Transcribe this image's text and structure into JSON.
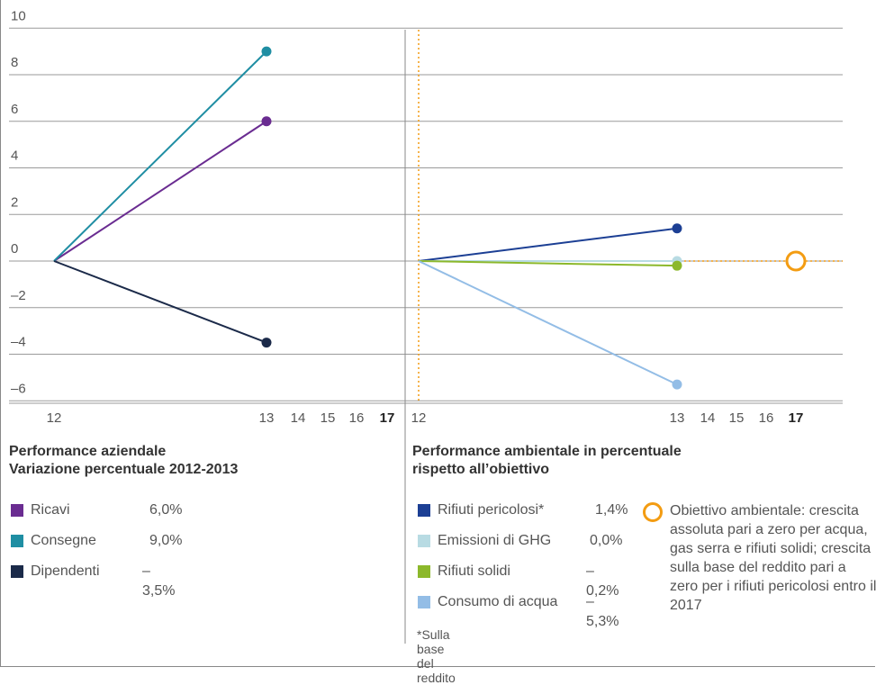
{
  "chart_data": [
    {
      "type": "line",
      "title": "Performance aziendale",
      "subtitle": "Variazione percentuale 2012-2013",
      "x_ticks": [
        "12",
        "13",
        "14",
        "15",
        "16",
        "17"
      ],
      "y_ticks": [
        "10",
        "8",
        "6",
        "4",
        "2",
        "0",
        "–2",
        "–4",
        "–6"
      ],
      "ylim": [
        -6,
        10
      ],
      "series": [
        {
          "name": "Ricavi",
          "color": "#6a2c91",
          "x": [
            12,
            13
          ],
          "y": [
            0,
            6.0
          ],
          "label": "6,0%"
        },
        {
          "name": "Consegne",
          "color": "#1f8ea3",
          "x": [
            12,
            13
          ],
          "y": [
            0,
            9.0
          ],
          "label": "9,0%"
        },
        {
          "name": "Dipendenti",
          "color": "#1b2a49",
          "x": [
            12,
            13
          ],
          "y": [
            0,
            -3.5
          ],
          "label": "–3,5%"
        }
      ]
    },
    {
      "type": "line",
      "title": "Performance ambientale in percentuale",
      "subtitle": "rispetto all’obiettivo",
      "x_ticks": [
        "12",
        "13",
        "14",
        "15",
        "16",
        "17"
      ],
      "ylim": [
        -6,
        10
      ],
      "series": [
        {
          "name": "Rifiuti pericolosi*",
          "color": "#1c3f94",
          "x": [
            12,
            13
          ],
          "y": [
            0,
            1.4
          ],
          "label": "1,4%"
        },
        {
          "name": "Emissioni di GHG",
          "color": "#b8dbe3",
          "x": [
            12,
            13
          ],
          "y": [
            0,
            0.0
          ],
          "label": "0,0%"
        },
        {
          "name": "Rifiuti solidi",
          "color": "#8cb82b",
          "x": [
            12,
            13
          ],
          "y": [
            0,
            -0.2
          ],
          "label": "–0,2%"
        },
        {
          "name": "Consumo di acqua",
          "color": "#93bde6",
          "x": [
            12,
            13
          ],
          "y": [
            0,
            -5.3
          ],
          "label": "–5,3%"
        }
      ],
      "target": {
        "x": 17,
        "y": 0,
        "color": "#f39c12"
      },
      "note": "*Sulla base del reddito",
      "target_text": "Obiettivo ambientale: crescita assoluta pari a zero per acqua, gas serra e rifiuti solidi; crescita sulla base del reddito pari a zero per i rifiuti pericolosi entro il 2017"
    }
  ]
}
